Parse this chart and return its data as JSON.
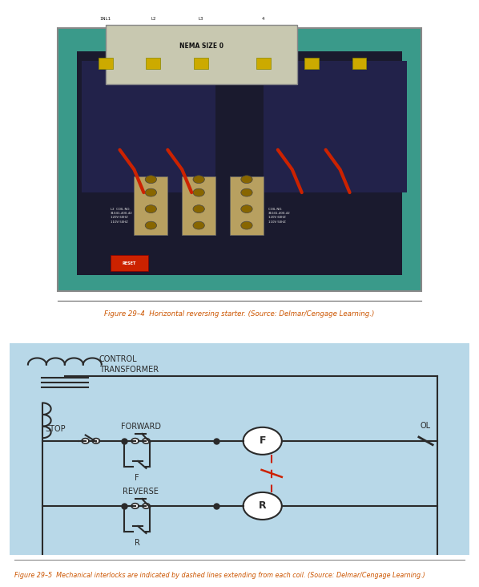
{
  "bg_color": "#b8d8e8",
  "diagram_bg": "#b8d8e8",
  "line_color": "#2a2a2a",
  "red_dash_color": "#cc2200",
  "fig_caption1": "Figure 29–4  Horizontal reversing starter. (Source: Delmar/Cengage Learning.)",
  "fig_caption2": "Figure 29–5  Mechanical interlocks are indicated by dashed lines extending from each coil. (Source: Delmar/Cengage Learning.)",
  "label_stop": "STOP",
  "label_forward": "FORWARD",
  "label_reverse": "REVERSE",
  "label_F": "F",
  "label_R": "R",
  "label_OL": "OL",
  "label_control": "CONTROL\nTRANSFORMER",
  "page_bg": "#ffffff"
}
